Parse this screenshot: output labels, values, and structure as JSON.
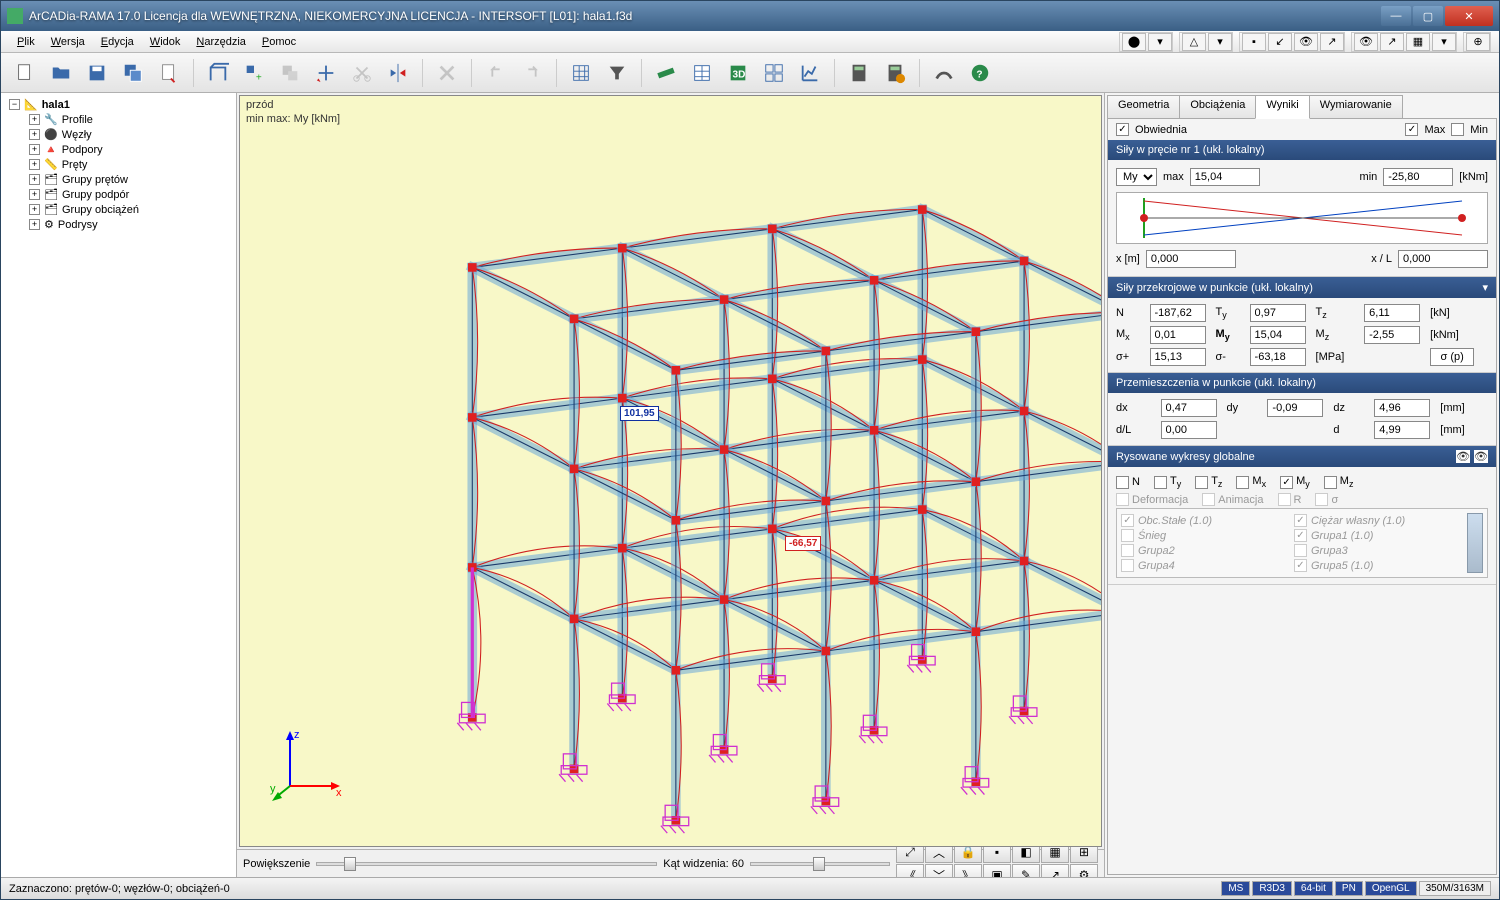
{
  "window": {
    "title": "ArCADia-RAMA 17.0 Licencja dla WEWNĘTRZNA, NIEKOMERCYJNA LICENCJA - INTERSOFT [L01]: hala1.f3d"
  },
  "menu": {
    "items": [
      "Plik",
      "Wersja",
      "Edycja",
      "Widok",
      "Narzędzia",
      "Pomoc"
    ]
  },
  "tree": {
    "root": "hala1",
    "children": [
      "Profile",
      "Węzły",
      "Podpory",
      "Pręty",
      "Grupy prętów",
      "Grupy podpór",
      "Grupy obciążeń",
      "Podrysy"
    ]
  },
  "viewport": {
    "label_line1": "przód",
    "label_line2": "min max: My [kNm]",
    "value_pos": "101,95",
    "value_neg": "-66,57",
    "axes": {
      "z": "z",
      "y": "y",
      "x": "x"
    },
    "colors": {
      "background": "#f8f8c8",
      "beams": "#6aa8d8",
      "beams_edge": "#1a3a6a",
      "nodes": "#e02020",
      "moment_line": "#d02020",
      "supports": "#d030d0",
      "highlight": "#d030d0"
    },
    "structure": {
      "type": "3d-frame",
      "bays_x": 3,
      "bays_y": 2,
      "storeys": 3
    }
  },
  "vp_bottom": {
    "zoom_label": "Powiększenie",
    "angle_label": "Kąt widzenia: 60"
  },
  "side": {
    "tabs": [
      "Geometria",
      "Obciążenia",
      "Wyniki",
      "Wymiarowanie"
    ],
    "active_tab": 2,
    "envelope": {
      "label": "Obwiednia",
      "max": "Max",
      "min": "Min",
      "env_checked": true,
      "max_checked": true,
      "min_checked": false
    },
    "forces_bar": {
      "header": "Siły w pręcie nr 1 (ukł. lokalny)",
      "component": "My",
      "max_label": "max",
      "max_val": "15,04",
      "min_label": "min",
      "min_val": "-25,80",
      "unit": "[kNm]",
      "x_label": "x [m]",
      "x_val": "0,000",
      "xL_label": "x / L",
      "xL_val": "0,000",
      "chart": {
        "type": "line",
        "xlim": [
          0,
          1
        ],
        "series": [
          {
            "color": "#0040c0",
            "points": [
              [
                0,
                0.1
              ],
              [
                1,
                0.85
              ]
            ]
          },
          {
            "color": "#d02020",
            "points": [
              [
                0,
                0.85
              ],
              [
                1,
                0.1
              ]
            ]
          }
        ],
        "origin_color": "#20a020",
        "marker_color": "#d02020"
      }
    },
    "section_forces": {
      "header": "Siły przekrojowe w punkcie (ukł. lokalny)",
      "N": "-187,62",
      "Ty": "0,97",
      "Tz": "6,11",
      "unit_force": "[kN]",
      "Mx": "0,01",
      "My": "15,04",
      "Mz": "-2,55",
      "unit_moment": "[kNm]",
      "sigma_p": "15,13",
      "sigma_m": "-63,18",
      "unit_stress": "[MPa]",
      "btn": "σ (p)"
    },
    "displacements": {
      "header": "Przemieszczenia w punkcie (ukł. lokalny)",
      "dx": "0,47",
      "dy": "-0,09",
      "dz": "4,96",
      "unit1": "[mm]",
      "dL": "0,00",
      "d": "4,99",
      "unit2": "[mm]"
    },
    "global_diag": {
      "header": "Rysowane wykresy globalne",
      "checks": [
        "N",
        "Ty",
        "Tz",
        "Mx",
        "My",
        "Mz"
      ],
      "checked": [
        false,
        false,
        false,
        false,
        true,
        false
      ],
      "row2": [
        "Deformacja",
        "Animacja",
        "R",
        "σ"
      ],
      "combos_left": [
        "Obc.Stałe (1.0)",
        "Śnieg",
        "Grupa2",
        "Grupa4"
      ],
      "combos_right": [
        "Ciężar własny (1.0)",
        "Grupa1 (1.0)",
        "Grupa3",
        "Grupa5 (1.0)"
      ]
    }
  },
  "status": {
    "left": "Zaznaczono: prętów-0; węzłów-0; obciążeń-0",
    "cells": [
      "MS",
      "R3D3",
      "64-bit",
      "PN",
      "OpenGL"
    ],
    "mem": "350M/3163M"
  }
}
